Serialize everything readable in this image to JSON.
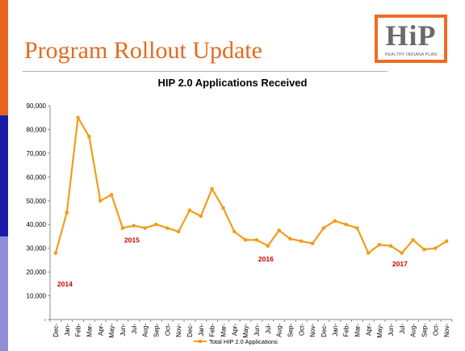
{
  "slide": {
    "title": "Program Rollout Update",
    "logo_text": "HiP",
    "logo_subtitle": "HEALTHY INDIANA PLAN"
  },
  "colors": {
    "accent_orange": "#e8641e",
    "accent_navy": "#1a1aa8",
    "accent_lavender": "#8e8ed6",
    "series": "#f39c1a",
    "year_label": "#cc0000"
  },
  "chart_data": {
    "type": "line",
    "title": "HIP 2.0 Applications Received",
    "ylim": [
      0,
      90000
    ],
    "y_ticks": [
      0,
      10000,
      20000,
      30000,
      40000,
      50000,
      60000,
      70000,
      80000,
      90000
    ],
    "y_tick_labels": [
      "-",
      "10,000",
      "20,000",
      "30,000",
      "40,000",
      "50,000",
      "60,000",
      "70,000",
      "80,000",
      "90,000"
    ],
    "grid": false,
    "legend_position": "bottom",
    "categories": [
      "Dec-",
      "Jan-",
      "Feb-",
      "Mar-",
      "Apr-",
      "May-",
      "Jun-",
      "Jul-",
      "Aug-",
      "Sep-",
      "Oct-",
      "Nov-",
      "Dec-",
      "Jan-",
      "Feb-",
      "Mar-",
      "Apr-",
      "May-",
      "Jun-",
      "Jul-",
      "Aug-",
      "Sep-",
      "Oct-",
      "Nov-",
      "Dec-",
      "Jan-",
      "Feb-",
      "Mar-",
      "Apr-",
      "May-",
      "Jun-",
      "Jul-",
      "Aug-",
      "Sep-",
      "Oct-",
      "Nov-"
    ],
    "series": [
      {
        "name": "Total HIP 2.0 Applications",
        "values": [
          28000,
          45000,
          85000,
          77000,
          50000,
          52500,
          38500,
          39500,
          38500,
          40000,
          38500,
          37000,
          46000,
          43500,
          55000,
          47000,
          37000,
          33500,
          33500,
          31000,
          37500,
          34000,
          33000,
          32000,
          38500,
          41500,
          40000,
          38500,
          28000,
          31500,
          31000,
          28000,
          33500,
          29500,
          30000,
          33000
        ]
      }
    ],
    "annotations": [
      {
        "text": "2014",
        "x_index": 0,
        "y": 14000
      },
      {
        "text": "2015",
        "x_index": 6,
        "y": 32500
      },
      {
        "text": "2016",
        "x_index": 18,
        "y": 24500
      },
      {
        "text": "2017",
        "x_index": 30,
        "y": 22500
      }
    ]
  }
}
